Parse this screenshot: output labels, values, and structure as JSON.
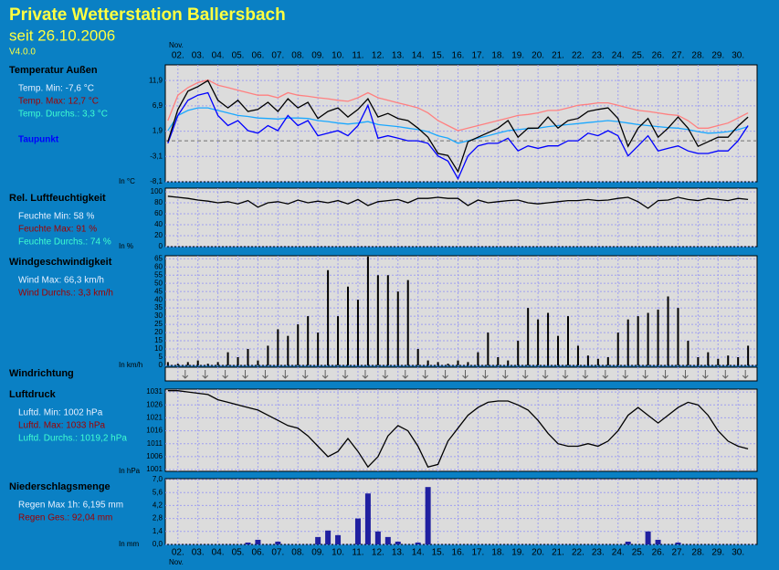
{
  "header": {
    "title": "Private Wetterstation Ballersbach",
    "subtitle": "seit 26.10.2006",
    "version": "V4.0.0"
  },
  "time_axis": {
    "month": "Nov.",
    "xlim": [
      1.37,
      30.95
    ],
    "xticks": [
      {
        "value": 2,
        "label": "02."
      },
      {
        "value": 3,
        "label": "03."
      },
      {
        "value": 4,
        "label": "04."
      },
      {
        "value": 5,
        "label": "05."
      },
      {
        "value": 6,
        "label": "06."
      },
      {
        "value": 7,
        "label": "07."
      },
      {
        "value": 8,
        "label": "08."
      },
      {
        "value": 9,
        "label": "09."
      },
      {
        "value": 10,
        "label": "10."
      },
      {
        "value": 11,
        "label": "11."
      },
      {
        "value": 12,
        "label": "12."
      },
      {
        "value": 13,
        "label": "13."
      },
      {
        "value": 14,
        "label": "14."
      },
      {
        "value": 15,
        "label": "15."
      },
      {
        "value": 16,
        "label": "16."
      },
      {
        "value": 17,
        "label": "17."
      },
      {
        "value": 18,
        "label": "18."
      },
      {
        "value": 19,
        "label": "19."
      },
      {
        "value": 20,
        "label": "20."
      },
      {
        "value": 21,
        "label": "21."
      },
      {
        "value": 22,
        "label": "22."
      },
      {
        "value": 23,
        "label": "23."
      },
      {
        "value": 24,
        "label": "24."
      },
      {
        "value": 25,
        "label": "25."
      },
      {
        "value": 26,
        "label": "26."
      },
      {
        "value": 27,
        "label": "27."
      },
      {
        "value": 28,
        "label": "28."
      },
      {
        "value": 29,
        "label": "29."
      },
      {
        "value": 30,
        "label": "30."
      }
    ],
    "x": [
      1.5,
      2,
      2.5,
      3,
      3.5,
      4,
      4.5,
      5,
      5.5,
      6,
      6.5,
      7,
      7.5,
      8,
      8.5,
      9,
      9.5,
      10,
      10.5,
      11,
      11.5,
      12,
      12.5,
      13,
      13.5,
      14,
      14.5,
      15,
      15.5,
      16,
      16.5,
      17,
      17.5,
      18,
      18.5,
      19,
      19.5,
      20,
      20.5,
      21,
      21.5,
      22,
      22.5,
      23,
      23.5,
      24,
      24.5,
      25,
      25.5,
      26,
      26.5,
      27,
      27.5,
      28,
      28.5,
      29,
      29.5,
      30,
      30.5
    ]
  },
  "chart_data": [
    {
      "type": "line",
      "title": "Temperatur Außen",
      "unit": "In °C",
      "stats": [
        "Temp. Min: -7,6 °C",
        "Temp. Max: 12,7 °C",
        "Temp. Durchs.: 3,3 °C"
      ],
      "ylim": [
        -8.1,
        15.0
      ],
      "reference_line": 0,
      "yticks": [
        {
          "value": 11.9,
          "label": "11,9"
        },
        {
          "value": 6.9,
          "label": "6,9"
        },
        {
          "value": 1.9,
          "label": "1,9"
        },
        {
          "value": -3.1,
          "label": "-3,1"
        },
        {
          "value": -8.1,
          "label": "-8,1"
        }
      ],
      "series": [
        {
          "color": "#ff8080",
          "values": [
            4,
            9,
            10.5,
            11.5,
            12,
            11,
            10.5,
            10,
            9.5,
            9,
            9,
            8.5,
            9.5,
            9,
            8.8,
            8.5,
            8.3,
            8.0,
            7.8,
            8.5,
            9.5,
            8.5,
            8,
            7.5,
            7,
            6.5,
            5.5,
            4,
            3,
            2,
            2.5,
            3,
            3.5,
            4,
            4.5,
            5,
            5.2,
            5.5,
            6,
            6,
            6.5,
            7,
            7.2,
            7.5,
            7.5,
            7,
            6.5,
            6,
            5.8,
            5.5,
            5.2,
            5,
            4,
            2.5,
            2.5,
            3,
            3.5,
            4.5,
            5.5
          ]
        },
        {
          "color": "#1aa8ff",
          "values": [
            2,
            5,
            6,
            6.5,
            6.5,
            6,
            5.5,
            5,
            4.8,
            4.5,
            4.4,
            4.3,
            4.5,
            4.5,
            4.4,
            4.0,
            3.8,
            3.5,
            3.3,
            3.5,
            3.8,
            3.2,
            3,
            2.8,
            2.5,
            2.2,
            1.8,
            1,
            0.5,
            -0.5,
            0,
            0.5,
            1,
            1.5,
            2,
            2.2,
            2.4,
            2.5,
            2.8,
            3,
            3.2,
            3.4,
            3.6,
            3.8,
            4,
            3.8,
            3.5,
            3.2,
            3,
            2.8,
            2.6,
            2.5,
            2.2,
            1.8,
            1.5,
            1.6,
            1.8,
            2.2,
            2.8
          ]
        },
        {
          "name": "Taupunkt",
          "color": "#0000ff",
          "values": [
            -0.5,
            5,
            8,
            9,
            9.5,
            5,
            3,
            4,
            2,
            1.5,
            3,
            2,
            5,
            3,
            4,
            1,
            1.5,
            2,
            1,
            3,
            7,
            0.5,
            1,
            0.5,
            0,
            0,
            -0.5,
            -3,
            -4,
            -7.5,
            -3,
            -1,
            -0.5,
            -0.5,
            0.5,
            -2,
            -1,
            -1.5,
            -1,
            -1,
            0,
            0,
            1.5,
            1,
            2,
            1,
            -3,
            -1,
            1,
            -2,
            -1.5,
            -1,
            -2,
            -2.5,
            -2.5,
            -2,
            -2,
            0,
            3
          ]
        },
        {
          "color": "#000000",
          "values": [
            -0.2,
            6.2,
            9.8,
            10.7,
            11.9,
            8.0,
            6.5,
            8.0,
            5.8,
            6.2,
            7.6,
            5.8,
            8.3,
            6.5,
            7.6,
            4.4,
            5.8,
            6.5,
            4.7,
            6.2,
            8.3,
            4.7,
            5.4,
            4.4,
            4.0,
            2.5,
            0.7,
            -2.5,
            -2.9,
            -6.1,
            -0.2,
            0.7,
            1.6,
            2.5,
            4.0,
            0.7,
            2.5,
            2.5,
            4.7,
            2.5,
            4.0,
            4.4,
            5.8,
            6.2,
            6.5,
            4.4,
            -1.1,
            2.5,
            4.4,
            0.7,
            2.5,
            4.7,
            2.5,
            -1.1,
            -0.2,
            0.7,
            0.7,
            2.9,
            4.7
          ]
        }
      ]
    },
    {
      "type": "line",
      "title": "Rel. Luftfeuchtigkeit",
      "unit": "In %",
      "stats": [
        "Feuchte Min: 58 %",
        "Feuchte Max: 91 %",
        "Feuchte Durchs.: 74 %"
      ],
      "ylim": [
        0,
        106.7
      ],
      "yticks": [
        100,
        80,
        60,
        40,
        20,
        0
      ],
      "series": [
        {
          "color": "#000000",
          "values": [
            92,
            90,
            88,
            85,
            83,
            80,
            82,
            78,
            84,
            72,
            80,
            82,
            78,
            85,
            80,
            83,
            80,
            84,
            78,
            86,
            75,
            82,
            84,
            86,
            80,
            88,
            88,
            90,
            88,
            88,
            75,
            85,
            80,
            82,
            84,
            85,
            80,
            78,
            80,
            82,
            84,
            84,
            86,
            84,
            85,
            88,
            90,
            82,
            70,
            84,
            85,
            90,
            86,
            84,
            88,
            86,
            84,
            88,
            86
          ]
        }
      ]
    },
    {
      "type": "spikes",
      "title": "Windgeschwindigkeit",
      "unit": "In km/h",
      "stats": [
        "Wind Max: 66,3 km/h",
        "Wind Durchs.: 3,3 km/h"
      ],
      "ylim": [
        0,
        66.8
      ],
      "yticks": [
        65,
        60,
        55,
        50,
        45,
        40,
        35,
        30,
        25,
        20,
        15,
        10,
        5,
        0
      ],
      "color": "#000000",
      "values": [
        2,
        1,
        2,
        3,
        1,
        2,
        8,
        5,
        10,
        3,
        12,
        22,
        18,
        25,
        30,
        20,
        58,
        30,
        48,
        40,
        66.3,
        55,
        55,
        45,
        52,
        10,
        3,
        2,
        1,
        3,
        2,
        8,
        20,
        5,
        3,
        15,
        35,
        28,
        32,
        18,
        30,
        12,
        6,
        4,
        5,
        20,
        28,
        30,
        32,
        34,
        42,
        35,
        15,
        5,
        8,
        4,
        6,
        5,
        12
      ]
    },
    {
      "type": "arrows",
      "title": "Windrichtung"
    },
    {
      "type": "line",
      "title": "Luftdruck",
      "unit": "In hPa",
      "stats": [
        "Luftd. Min: 1002 hPa",
        "Luftd. Max: 1033 hPa",
        "Luftd. Durchs.: 1019,2 hPa"
      ],
      "ylim": [
        1000.3,
        1032.1
      ],
      "yticks": [
        1031,
        1026,
        1021,
        1016,
        1011,
        1006,
        1001
      ],
      "series": [
        {
          "color": "#000000",
          "values": [
            1031.5,
            1031.5,
            1031,
            1030.5,
            1030,
            1028,
            1027,
            1026,
            1025,
            1024,
            1022,
            1020,
            1018,
            1017,
            1014,
            1010,
            1006,
            1008,
            1013,
            1008,
            1002,
            1006,
            1014,
            1018,
            1016,
            1010,
            1002,
            1003,
            1012,
            1017,
            1022,
            1025,
            1027,
            1027.5,
            1027.5,
            1026,
            1024,
            1020,
            1015,
            1011,
            1010,
            1010,
            1011,
            1010,
            1012,
            1016,
            1022,
            1025,
            1022,
            1019,
            1022,
            1025,
            1027,
            1026,
            1022,
            1016,
            1012,
            1010,
            1009
          ]
        }
      ]
    },
    {
      "type": "bar",
      "title": "Niederschlagsmenge",
      "unit": "In mm",
      "stats": [
        "Regen Max 1h: 6,195 mm",
        "Regen Ges.: 92,04 mm"
      ],
      "ylim": [
        0,
        7.1
      ],
      "color": "#2020a0",
      "yticks": [
        {
          "value": 7.0,
          "label": "7,0"
        },
        {
          "value": 5.6,
          "label": "5,6"
        },
        {
          "value": 4.2,
          "label": "4,2"
        },
        {
          "value": 2.8,
          "label": "2,8"
        },
        {
          "value": 1.4,
          "label": "1,4"
        },
        {
          "value": 0,
          "label": "0,0"
        }
      ],
      "values": [
        0,
        0,
        0,
        0,
        0,
        0,
        0,
        0,
        0.2,
        0.5,
        0,
        0.3,
        0,
        0,
        0,
        0.8,
        1.5,
        1.0,
        0,
        2.8,
        5.5,
        1.4,
        0.8,
        0.3,
        0,
        0.2,
        6.195,
        0,
        0,
        0,
        0,
        0,
        0,
        0,
        0,
        0,
        0,
        0,
        0,
        0,
        0,
        0,
        0,
        0,
        0,
        0,
        0.3,
        0,
        1.4,
        0.5,
        0,
        0.2,
        0,
        0,
        0,
        0,
        0,
        0,
        0
      ]
    }
  ]
}
